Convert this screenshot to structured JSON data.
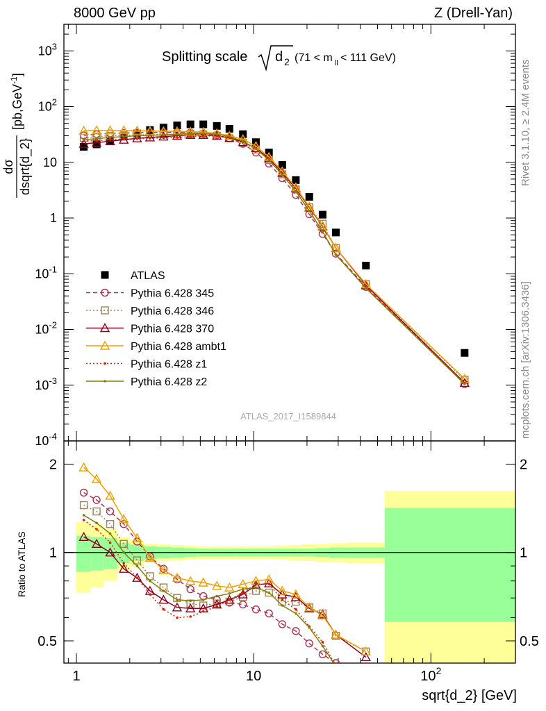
{
  "header": {
    "left": "8000 GeV pp",
    "right": "Z (Drell-Yan)"
  },
  "side_labels": {
    "rivet": "Rivet 3.1.10, ≥ 2.4M events",
    "mcplots": "mcplots.cern.ch [arXiv:1306.3436]"
  },
  "plot": {
    "title_main": "Splitting scale",
    "title_sym": "d",
    "title_sub": "2",
    "title_range_open": "(71 < m",
    "title_range_sub": "ll",
    "title_range_close": " < 111 GeV)",
    "watermark": "ATLAS_2017_I1589844",
    "xlabel": "sqrt{d_2} [GeV]",
    "ylabel_top_num": "dσ",
    "ylabel_top_den": "dsqrt{d_2}",
    "ylabel_top_unit": "[pb,GeV",
    "ylabel_ratio": "Ratio to ATLAS"
  },
  "colors": {
    "data": "#000000",
    "p345": "#b03050",
    "p346": "#a08050",
    "p370": "#900020",
    "ambt1": "#f0a000",
    "z1": "#e02000",
    "z2": "#808000",
    "band_inner": "#99ff99",
    "band_outer": "#ffff99"
  },
  "chart_data": [
    {
      "type": "scatter",
      "panel": "main",
      "xscale": "log",
      "yscale": "log",
      "xlim": [
        0.85,
        300
      ],
      "ylim": [
        0.0001,
        3000
      ],
      "xticklabels": [
        "1",
        "10",
        "10^2"
      ],
      "yticklabels": [
        "10^-4",
        "10^-3",
        "10^-2",
        "10^-1",
        "1",
        "10",
        "10^2",
        "10^3"
      ],
      "legend_position": "left-middle",
      "series": [
        {
          "name": "ATLAS",
          "marker": "square",
          "x": [
            1.1,
            1.3,
            1.55,
            1.85,
            2.2,
            2.6,
            3.1,
            3.7,
            4.4,
            5.2,
            6.2,
            7.3,
            8.7,
            10.3,
            12.2,
            14.5,
            17.3,
            20.6,
            24.5,
            29.1,
            43,
            155
          ],
          "y": [
            19,
            21,
            24,
            29,
            33,
            38,
            42,
            46,
            48,
            48,
            45,
            40,
            32,
            23,
            15,
            9,
            4.8,
            2.4,
            1.15,
            0.55,
            0.14,
            0.0038
          ]
        },
        {
          "name": "Pythia 6.428 345",
          "marker": "circle",
          "line": "dashed",
          "x": [
            1.1,
            1.3,
            1.55,
            1.85,
            2.2,
            2.6,
            3.1,
            3.7,
            4.4,
            5.2,
            6.2,
            7.3,
            8.7,
            10.3,
            12.2,
            14.5,
            17.3,
            20.6,
            24.5,
            29.1,
            43,
            155
          ],
          "y": [
            30.5,
            32,
            33,
            33.5,
            34,
            34.5,
            34.5,
            34.5,
            34,
            33,
            31,
            27,
            21.5,
            15,
            9.5,
            5.2,
            2.6,
            1.17,
            0.52,
            0.23,
            0.058,
            0.00105
          ]
        },
        {
          "name": "Pythia 6.428 346",
          "marker": "square-open",
          "line": "dotted",
          "x": [
            1.1,
            1.3,
            1.55,
            1.85,
            2.2,
            2.6,
            3.1,
            3.7,
            4.4,
            5.2,
            6.2,
            7.3,
            8.7,
            10.3,
            12.2,
            14.5,
            17.3,
            20.6,
            24.5,
            29.1,
            43,
            155
          ],
          "y": [
            27.5,
            29,
            30,
            30.5,
            31,
            31.5,
            32,
            32,
            32,
            31.5,
            30,
            27,
            22.5,
            17,
            11,
            6.1,
            3.25,
            1.56,
            0.79,
            0.29,
            0.065,
            0.00125
          ]
        },
        {
          "name": "Pythia 6.428 370",
          "marker": "triangle-open",
          "line": "solid",
          "x": [
            1.1,
            1.3,
            1.55,
            1.85,
            2.2,
            2.6,
            3.1,
            3.7,
            4.4,
            5.2,
            6.2,
            7.3,
            8.7,
            10.3,
            12.2,
            14.5,
            17.3,
            20.6,
            24.5,
            29.1,
            43,
            155
          ],
          "y": [
            21.5,
            22.5,
            24,
            25.5,
            27,
            28,
            29,
            30,
            31,
            31,
            30,
            27.5,
            23,
            18,
            11.8,
            6.5,
            3.4,
            1.55,
            0.71,
            0.29,
            0.062,
            0.0011
          ]
        },
        {
          "name": "Pythia 6.428 ambt1",
          "marker": "triangle-open",
          "line": "solid",
          "x": [
            1.1,
            1.3,
            1.55,
            1.85,
            2.2,
            2.6,
            3.1,
            3.7,
            4.4,
            5.2,
            6.2,
            7.3,
            8.7,
            10.3,
            12.2,
            14.5,
            17.3,
            20.6,
            24.5,
            29.1,
            43,
            155
          ],
          "y": [
            37,
            37.5,
            37.5,
            37.5,
            37,
            36.5,
            36,
            36,
            35.5,
            35,
            33,
            30,
            26,
            19.5,
            12.5,
            6.9,
            3.55,
            1.6,
            0.73,
            0.29,
            0.065,
            0.0013
          ]
        },
        {
          "name": "Pythia 6.428 z1",
          "marker": "dot",
          "line": "dotted",
          "x": [
            1.1,
            1.3,
            1.55,
            1.85,
            2.2,
            2.6,
            3.1,
            3.7,
            4.4,
            5.2,
            6.2,
            7.3,
            8.7,
            10.3,
            12.2,
            14.5,
            17.3,
            20.6,
            24.5,
            29.1,
            43,
            155
          ],
          "y": [
            24,
            24.5,
            25.5,
            26,
            26.5,
            27,
            27.5,
            28,
            29,
            30,
            29.5,
            27.5,
            23.5,
            18,
            11.5,
            6.2,
            3.05,
            1.33,
            0.57,
            0.22,
            0.056,
            0.0011
          ]
        },
        {
          "name": "Pythia 6.428 z2",
          "marker": "dot",
          "line": "solid",
          "x": [
            1.1,
            1.3,
            1.55,
            1.85,
            2.2,
            2.6,
            3.1,
            3.7,
            4.4,
            5.2,
            6.2,
            7.3,
            8.7,
            10.3,
            12.2,
            14.5,
            17.3,
            20.6,
            24.5,
            29.1,
            43,
            155
          ],
          "y": [
            25.5,
            26.5,
            28,
            29,
            30,
            30.5,
            31,
            32,
            33,
            33,
            32,
            29,
            24,
            17.5,
            11,
            6.0,
            3.0,
            1.35,
            0.57,
            0.22,
            0.055,
            0.00105
          ]
        }
      ]
    },
    {
      "type": "line",
      "panel": "ratio",
      "xscale": "log",
      "yscale": "log",
      "xlim": [
        0.85,
        300
      ],
      "ylim": [
        0.42,
        2.4
      ],
      "reference_line": 1,
      "ylabel": "Ratio to ATLAS",
      "xlabel": "sqrt{d_2} [GeV]",
      "yticklabels": [
        "0.5",
        "1",
        "2"
      ],
      "band_edges": [
        1.0,
        1.2,
        1.42,
        1.7,
        2.0,
        2.4,
        2.85,
        3.4,
        4.05,
        4.8,
        5.7,
        6.75,
        8.0,
        9.5,
        11.25,
        13.35,
        15.85,
        18.85,
        22.4,
        26.7,
        33,
        55,
        300
      ],
      "band_inner_half": [
        0.14,
        0.13,
        0.12,
        0.08,
        0.065,
        0.05,
        0.045,
        0.04,
        0.035,
        0.03,
        0.03,
        0.03,
        0.03,
        0.03,
        0.03,
        0.03,
        0.03,
        0.03,
        0.035,
        0.04,
        0.04,
        0.42
      ],
      "band_outer_half": [
        0.27,
        0.24,
        0.2,
        0.13,
        0.1,
        0.07,
        0.065,
        0.06,
        0.055,
        0.05,
        0.05,
        0.05,
        0.05,
        0.05,
        0.05,
        0.055,
        0.06,
        0.065,
        0.07,
        0.075,
        0.08,
        0.62
      ],
      "series": [
        {
          "name": "Pythia 6.428 345",
          "x": [
            1.1,
            1.3,
            1.55,
            1.85,
            2.2,
            2.6,
            3.1,
            3.7,
            4.4,
            5.2,
            6.2,
            7.3,
            8.7,
            10.3,
            12.2,
            14.5,
            17.3,
            20.6,
            24.5,
            29.1,
            43
          ],
          "y": [
            1.6,
            1.51,
            1.38,
            1.25,
            1.09,
            0.97,
            0.88,
            0.81,
            0.75,
            0.71,
            0.69,
            0.675,
            0.665,
            0.64,
            0.62,
            0.57,
            0.54,
            0.49,
            0.45,
            0.42,
            0.41
          ]
        },
        {
          "name": "Pythia 6.428 346",
          "x": [
            1.1,
            1.3,
            1.55,
            1.85,
            2.2,
            2.6,
            3.1,
            3.7,
            4.4,
            5.2,
            6.2,
            7.3,
            8.7,
            10.3,
            12.2,
            14.5,
            17.3,
            20.6,
            24.5,
            29.1,
            43
          ],
          "y": [
            1.45,
            1.38,
            1.25,
            1.07,
            0.94,
            0.83,
            0.76,
            0.7,
            0.67,
            0.66,
            0.67,
            0.68,
            0.705,
            0.74,
            0.73,
            0.68,
            0.68,
            0.65,
            0.62,
            0.52,
            0.46
          ]
        },
        {
          "name": "Pythia 6.428 370",
          "x": [
            1.1,
            1.3,
            1.55,
            1.85,
            2.2,
            2.6,
            3.1,
            3.7,
            4.4,
            5.2,
            6.2,
            7.3,
            8.7,
            10.3,
            12.2,
            14.5,
            17.3,
            20.6,
            24.5,
            29.1,
            43
          ],
          "y": [
            1.13,
            1.07,
            1.0,
            0.88,
            0.82,
            0.74,
            0.69,
            0.65,
            0.645,
            0.645,
            0.665,
            0.69,
            0.72,
            0.775,
            0.785,
            0.72,
            0.705,
            0.645,
            0.615,
            0.525,
            0.44
          ]
        },
        {
          "name": "Pythia 6.428 ambt1",
          "x": [
            1.1,
            1.3,
            1.55,
            1.85,
            2.2,
            2.6,
            3.1,
            3.7,
            4.4,
            5.2,
            6.2,
            7.3,
            8.7,
            10.3,
            12.2,
            14.5,
            17.3,
            20.6,
            24.5,
            29.1,
            43
          ],
          "y": [
            1.95,
            1.78,
            1.56,
            1.3,
            1.12,
            0.96,
            0.87,
            0.82,
            0.8,
            0.79,
            0.77,
            0.76,
            0.78,
            0.8,
            0.81,
            0.74,
            0.72,
            0.65,
            0.61,
            0.525,
            0.46
          ]
        },
        {
          "name": "Pythia 6.428 z1",
          "x": [
            1.1,
            1.3,
            1.55,
            1.85,
            2.2,
            2.6,
            3.1,
            3.7,
            4.4,
            5.2,
            6.2,
            7.3,
            8.7,
            10.3,
            12.2,
            14.5,
            17.3,
            20.6,
            24.5,
            29.1,
            43
          ],
          "y": [
            1.29,
            1.2,
            1.08,
            0.92,
            0.82,
            0.72,
            0.64,
            0.6,
            0.605,
            0.63,
            0.655,
            0.69,
            0.73,
            0.78,
            0.78,
            0.69,
            0.64,
            0.56,
            0.495,
            0.41,
            0.4
          ]
        },
        {
          "name": "Pythia 6.428 z2",
          "x": [
            1.1,
            1.3,
            1.55,
            1.85,
            2.2,
            2.6,
            3.1,
            3.7,
            4.4,
            5.2,
            6.2,
            7.3,
            8.7,
            10.3,
            12.2,
            14.5,
            17.3,
            20.6,
            24.5,
            29.1,
            43
          ],
          "y": [
            1.34,
            1.26,
            1.16,
            1.0,
            0.9,
            0.8,
            0.74,
            0.69,
            0.685,
            0.69,
            0.71,
            0.725,
            0.75,
            0.76,
            0.73,
            0.66,
            0.62,
            0.555,
            0.48,
            0.41,
            0.4
          ]
        }
      ]
    }
  ]
}
